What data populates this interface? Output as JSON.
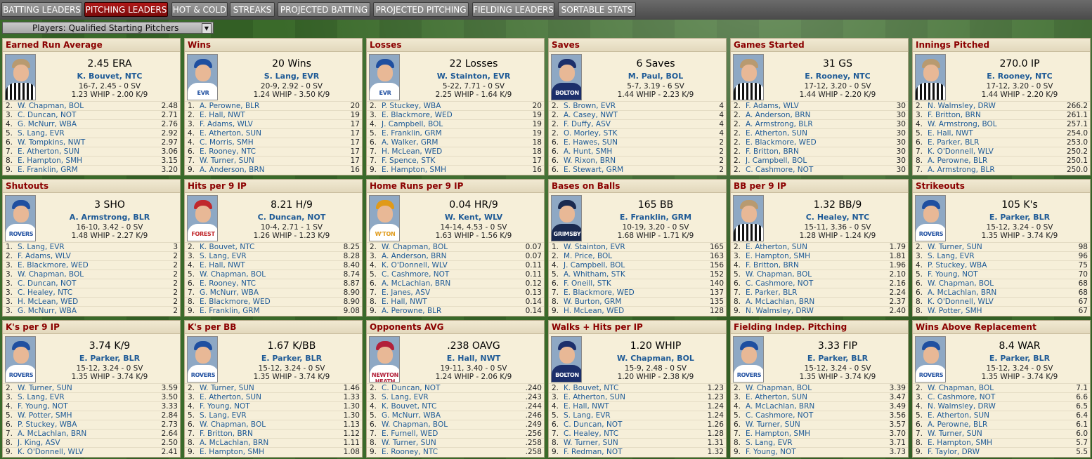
{
  "tabs": [
    {
      "label": "BATTING LEADERS",
      "active": false
    },
    {
      "label": "PITCHING LEADERS",
      "active": true
    },
    {
      "label": "HOT & COLD",
      "active": false
    },
    {
      "label": "STREAKS",
      "active": false
    },
    {
      "label": "PROJECTED BATTING",
      "active": false
    },
    {
      "label": "PROJECTED PITCHING",
      "active": false
    },
    {
      "label": "FIELDING LEADERS",
      "active": false
    },
    {
      "label": "SORTABLE STATS",
      "active": false
    }
  ],
  "filter": {
    "value": "Players: Qualified Starting Pitchers"
  },
  "colors": {
    "active_tab": "#9e1010",
    "title": "#8b0000",
    "link": "#1e5a96",
    "panel_bg": "#f6efd9"
  },
  "panels": [
    {
      "title": "Earned Run Average",
      "leader_value": "2.45 ERA",
      "leader_name": "K. Bouvet, NTC",
      "line1": "16-7, 2.45 - 0 SV",
      "line2": "1.23 WHIP - 2.00 K/9",
      "face_team": "NTC",
      "rows": [
        [
          "2.",
          "W. Chapman, BOL",
          "2.48"
        ],
        [
          "3.",
          "C. Duncan, NOT",
          "2.71"
        ],
        [
          "4.",
          "G. McNurr, WBA",
          "2.76"
        ],
        [
          "5.",
          "S. Lang, EVR",
          "2.92"
        ],
        [
          "6.",
          "W. Tompkins, NWT",
          "2.97"
        ],
        [
          "7.",
          "E. Atherton, SUN",
          "3.06"
        ],
        [
          "8.",
          "E. Hampton, SMH",
          "3.15"
        ],
        [
          "9.",
          "E. Franklin, GRM",
          "3.20"
        ]
      ]
    },
    {
      "title": "Wins",
      "leader_value": "20 Wins",
      "leader_name": "S. Lang, EVR",
      "line1": "20-9, 2.92 - 0 SV",
      "line2": "1.24 WHIP - 3.50 K/9",
      "face_team": "EVR",
      "rows": [
        [
          "1.",
          "A. Perowne, BLR",
          "20"
        ],
        [
          "2.",
          "E. Hall, NWT",
          "19"
        ],
        [
          "3.",
          "F. Adams, WLV",
          "17"
        ],
        [
          "4.",
          "E. Atherton, SUN",
          "17"
        ],
        [
          "4.",
          "C. Morris, SMH",
          "17"
        ],
        [
          "6.",
          "E. Rooney, NTC",
          "17"
        ],
        [
          "7.",
          "W. Turner, SUN",
          "17"
        ],
        [
          "9.",
          "A. Anderson, BRN",
          "16"
        ]
      ]
    },
    {
      "title": "Losses",
      "leader_value": "22 Losses",
      "leader_name": "W. Stainton, EVR",
      "line1": "5-22, 7.71 - 0 SV",
      "line2": "2.25 WHIP - 1.64 K/9",
      "face_team": "EVR",
      "rows": [
        [
          "2.",
          "P. Stuckey, WBA",
          "20"
        ],
        [
          "3.",
          "E. Blackmore, WED",
          "19"
        ],
        [
          "4.",
          "J. Campbell, BOL",
          "19"
        ],
        [
          "5.",
          "E. Franklin, GRM",
          "19"
        ],
        [
          "6.",
          "A. Walker, GRM",
          "18"
        ],
        [
          "7.",
          "H. McLean, WED",
          "18"
        ],
        [
          "7.",
          "F. Spence, STK",
          "17"
        ],
        [
          "9.",
          "E. Hampton, SMH",
          "16"
        ]
      ]
    },
    {
      "title": "Saves",
      "leader_value": "6 Saves",
      "leader_name": "M. Paul, BOL",
      "line1": "5-7, 3.19 - 6 SV",
      "line2": "1.44 WHIP - 2.23 K/9",
      "face_team": "BOLTON",
      "rows": [
        [
          "2.",
          "S. Brown, EVR",
          "4"
        ],
        [
          "2.",
          "A. Casey, NWT",
          "4"
        ],
        [
          "2.",
          "F. Duffy, ASV",
          "4"
        ],
        [
          "2.",
          "O. Morley, STK",
          "4"
        ],
        [
          "6.",
          "E. Hawes, SUN",
          "2"
        ],
        [
          "6.",
          "A. Hunt, SMH",
          "2"
        ],
        [
          "6.",
          "W. Rixon, BRN",
          "2"
        ],
        [
          "6.",
          "E. Stewart, GRM",
          "2"
        ]
      ]
    },
    {
      "title": "Games Started",
      "leader_value": "31 GS",
      "leader_name": "E. Rooney, NTC",
      "line1": "17-12, 3.20 - 0 SV",
      "line2": "1.44 WHIP - 2.20 K/9",
      "face_team": "NTC",
      "rows": [
        [
          "2.",
          "F. Adams, WLV",
          "30"
        ],
        [
          "2.",
          "A. Anderson, BRN",
          "30"
        ],
        [
          "2.",
          "A. Armstrong, BLR",
          "30"
        ],
        [
          "2.",
          "E. Atherton, SUN",
          "30"
        ],
        [
          "2.",
          "E. Blackmore, WED",
          "30"
        ],
        [
          "2.",
          "F. Britton, BRN",
          "30"
        ],
        [
          "2.",
          "J. Campbell, BOL",
          "30"
        ],
        [
          "2.",
          "C. Cashmore, NOT",
          "30"
        ]
      ]
    },
    {
      "title": "Innings Pitched",
      "leader_value": "270.0 IP",
      "leader_name": "E. Rooney, NTC",
      "line1": "17-12, 3.20 - 0 SV",
      "line2": "1.44 WHIP - 2.20 K/9",
      "face_team": "NTC",
      "rows": [
        [
          "2.",
          "N. Walmsley, DRW",
          "266.2"
        ],
        [
          "3.",
          "F. Britton, BRN",
          "261.1"
        ],
        [
          "4.",
          "W. Armstrong, BOL",
          "257.1"
        ],
        [
          "5.",
          "E. Hall, NWT",
          "254.0"
        ],
        [
          "6.",
          "E. Parker, BLR",
          "253.0"
        ],
        [
          "7.",
          "K. O'Donnell, WLV",
          "250.2"
        ],
        [
          "8.",
          "A. Perowne, BLR",
          "250.1"
        ],
        [
          "7.",
          "A. Armstrong, BLR",
          "250.0"
        ]
      ]
    },
    {
      "title": "Shutouts",
      "leader_value": "3 SHO",
      "leader_name": "A. Armstrong, BLR",
      "line1": "16-10, 3.42 - 0 SV",
      "line2": "1.48 WHIP - 2.27 K/9",
      "face_team": "ROVERS",
      "rows": [
        [
          "1.",
          "S. Lang, EVR",
          "3"
        ],
        [
          "2.",
          "F. Adams, WLV",
          "2"
        ],
        [
          "3.",
          "E. Blackmore, WED",
          "2"
        ],
        [
          "3.",
          "W. Chapman, BOL",
          "2"
        ],
        [
          "3.",
          "C. Duncan, NOT",
          "2"
        ],
        [
          "3.",
          "C. Healey, NTC",
          "2"
        ],
        [
          "3.",
          "H. McLean, WED",
          "2"
        ],
        [
          "3.",
          "G. McNurr, WBA",
          "2"
        ]
      ]
    },
    {
      "title": "Hits per 9 IP",
      "leader_value": "8.21 H/9",
      "leader_name": "C. Duncan, NOT",
      "line1": "10-4, 2.71 - 1 SV",
      "line2": "1.26 WHIP - 1.23 K/9",
      "face_team": "FOREST",
      "rows": [
        [
          "2.",
          "K. Bouvet, NTC",
          "8.25"
        ],
        [
          "3.",
          "S. Lang, EVR",
          "8.28"
        ],
        [
          "4.",
          "E. Hall, NWT",
          "8.40"
        ],
        [
          "5.",
          "W. Chapman, BOL",
          "8.74"
        ],
        [
          "6.",
          "E. Rooney, NTC",
          "8.87"
        ],
        [
          "7.",
          "G. McNurr, WBA",
          "8.90"
        ],
        [
          "8.",
          "E. Blackmore, WED",
          "8.90"
        ],
        [
          "9.",
          "E. Franklin, GRM",
          "9.08"
        ]
      ]
    },
    {
      "title": "Home Runs per 9 IP",
      "leader_value": "0.04 HR/9",
      "leader_name": "W. Kent, WLV",
      "line1": "14-14, 4.53 - 0 SV",
      "line2": "1.63 WHIP - 1.56 K/9",
      "face_team": "W'TON",
      "rows": [
        [
          "2.",
          "W. Chapman, BOL",
          "0.07"
        ],
        [
          "3.",
          "A. Anderson, BRN",
          "0.07"
        ],
        [
          "4.",
          "K. O'Donnell, WLV",
          "0.11"
        ],
        [
          "5.",
          "C. Cashmore, NOT",
          "0.11"
        ],
        [
          "6.",
          "A. McLachlan, BRN",
          "0.12"
        ],
        [
          "7.",
          "E. Janes, ASV",
          "0.13"
        ],
        [
          "8.",
          "E. Hall, NWT",
          "0.14"
        ],
        [
          "9.",
          "A. Perowne, BLR",
          "0.14"
        ]
      ]
    },
    {
      "title": "Bases on Balls",
      "leader_value": "165 BB",
      "leader_name": "E. Franklin, GRM",
      "line1": "10-19, 3.20 - 0 SV",
      "line2": "1.68 WHIP - 1.71 K/9",
      "face_team": "GRIMSBY",
      "rows": [
        [
          "1.",
          "W. Stainton, EVR",
          "165"
        ],
        [
          "2.",
          "M. Price, BOL",
          "163"
        ],
        [
          "4.",
          "J. Campbell, BOL",
          "156"
        ],
        [
          "5.",
          "A. Whitham, STK",
          "152"
        ],
        [
          "6.",
          "F. Oneill, STK",
          "140"
        ],
        [
          "7.",
          "E. Blackmore, WED",
          "137"
        ],
        [
          "8.",
          "W. Burton, GRM",
          "135"
        ],
        [
          "9.",
          "H. McLean, WED",
          "128"
        ]
      ]
    },
    {
      "title": "BB per 9 IP",
      "leader_value": "1.32 BB/9",
      "leader_name": "C. Healey, NTC",
      "line1": "15-11, 3.36 - 0 SV",
      "line2": "1.28 WHIP - 1.24 K/9",
      "face_team": "NTC",
      "rows": [
        [
          "2.",
          "E. Atherton, SUN",
          "1.79"
        ],
        [
          "3.",
          "E. Hampton, SMH",
          "1.81"
        ],
        [
          "4.",
          "F. Britton, BRN",
          "1.96"
        ],
        [
          "5.",
          "W. Chapman, BOL",
          "2.10"
        ],
        [
          "6.",
          "C. Cashmore, NOT",
          "2.16"
        ],
        [
          "7.",
          "E. Parker, BLR",
          "2.24"
        ],
        [
          "8.",
          "A. McLachlan, BRN",
          "2.37"
        ],
        [
          "9.",
          "N. Walmsley, DRW",
          "2.40"
        ]
      ]
    },
    {
      "title": "Strikeouts",
      "leader_value": "105 K's",
      "leader_name": "E. Parker, BLR",
      "line1": "15-12, 3.24 - 0 SV",
      "line2": "1.35 WHIP - 3.74 K/9",
      "face_team": "ROVERS",
      "rows": [
        [
          "2.",
          "W. Turner, SUN",
          "98"
        ],
        [
          "3.",
          "S. Lang, EVR",
          "96"
        ],
        [
          "4.",
          "P. Stuckey, WBA",
          "75"
        ],
        [
          "5.",
          "F. Young, NOT",
          "70"
        ],
        [
          "6.",
          "W. Chapman, BOL",
          "68"
        ],
        [
          "6.",
          "A. McLachlan, BRN",
          "68"
        ],
        [
          "8.",
          "K. O'Donnell, WLV",
          "67"
        ],
        [
          "8.",
          "W. Potter, SMH",
          "67"
        ]
      ]
    },
    {
      "title": "K's per 9 IP",
      "leader_value": "3.74 K/9",
      "leader_name": "E. Parker, BLR",
      "line1": "15-12, 3.24 - 0 SV",
      "line2": "1.35 WHIP - 3.74 K/9",
      "face_team": "ROVERS",
      "rows": [
        [
          "2.",
          "W. Turner, SUN",
          "3.59"
        ],
        [
          "3.",
          "S. Lang, EVR",
          "3.50"
        ],
        [
          "4.",
          "F. Young, NOT",
          "3.33"
        ],
        [
          "5.",
          "W. Potter, SMH",
          "2.84"
        ],
        [
          "6.",
          "P. Stuckey, WBA",
          "2.73"
        ],
        [
          "7.",
          "A. McLachlan, BRN",
          "2.64"
        ],
        [
          "8.",
          "J. King, ASV",
          "2.50"
        ],
        [
          "9.",
          "K. O'Donnell, WLV",
          "2.41"
        ]
      ]
    },
    {
      "title": "K's per BB",
      "leader_value": "1.67 K/BB",
      "leader_name": "E. Parker, BLR",
      "line1": "15-12, 3.24 - 0 SV",
      "line2": "1.35 WHIP - 3.74 K/9",
      "face_team": "ROVERS",
      "rows": [
        [
          "2.",
          "W. Turner, SUN",
          "1.46"
        ],
        [
          "3.",
          "E. Atherton, SUN",
          "1.33"
        ],
        [
          "4.",
          "F. Young, NOT",
          "1.30"
        ],
        [
          "5.",
          "S. Lang, EVR",
          "1.30"
        ],
        [
          "6.",
          "W. Chapman, BOL",
          "1.13"
        ],
        [
          "7.",
          "F. Britton, BRN",
          "1.12"
        ],
        [
          "8.",
          "A. McLachlan, BRN",
          "1.11"
        ],
        [
          "9.",
          "E. Hampton, SMH",
          "1.08"
        ]
      ]
    },
    {
      "title": "Opponents AVG",
      "leader_value": ".238 OAVG",
      "leader_name": "E. Hall, NWT",
      "line1": "19-11, 3.40 - 0 SV",
      "line2": "1.24 WHIP - 2.06 K/9",
      "face_team": "NEWTON HEATH",
      "rows": [
        [
          "2.",
          "C. Duncan, NOT",
          ".240"
        ],
        [
          "3.",
          "S. Lang, EVR",
          ".243"
        ],
        [
          "4.",
          "K. Bouvet, NTC",
          ".244"
        ],
        [
          "5.",
          "G. McNurr, WBA",
          ".246"
        ],
        [
          "6.",
          "W. Chapman, BOL",
          ".249"
        ],
        [
          "7.",
          "E. Furnell, WED",
          ".256"
        ],
        [
          "8.",
          "W. Turner, SUN",
          ".258"
        ],
        [
          "9.",
          "E. Rooney, NTC",
          ".258"
        ]
      ]
    },
    {
      "title": "Walks + Hits per IP",
      "leader_value": "1.20 WHIP",
      "leader_name": "W. Chapman, BOL",
      "line1": "15-9, 2.48 - 0 SV",
      "line2": "1.20 WHIP - 2.38 K/9",
      "face_team": "BOLTON",
      "rows": [
        [
          "2.",
          "K. Bouvet, NTC",
          "1.23"
        ],
        [
          "3.",
          "E. Atherton, SUN",
          "1.23"
        ],
        [
          "4.",
          "E. Hall, NWT",
          "1.24"
        ],
        [
          "5.",
          "S. Lang, EVR",
          "1.24"
        ],
        [
          "6.",
          "C. Duncan, NOT",
          "1.26"
        ],
        [
          "7.",
          "C. Healey, NTC",
          "1.28"
        ],
        [
          "8.",
          "W. Turner, SUN",
          "1.31"
        ],
        [
          "9.",
          "F. Redman, NOT",
          "1.32"
        ]
      ]
    },
    {
      "title": "Fielding Indep. Pitching",
      "leader_value": "3.33 FIP",
      "leader_name": "E. Parker, BLR",
      "line1": "15-12, 3.24 - 0 SV",
      "line2": "1.35 WHIP - 3.74 K/9",
      "face_team": "ROVERS",
      "rows": [
        [
          "2.",
          "W. Chapman, BOL",
          "3.39"
        ],
        [
          "3.",
          "E. Atherton, SUN",
          "3.47"
        ],
        [
          "4.",
          "A. McLachlan, BRN",
          "3.49"
        ],
        [
          "5.",
          "C. Cashmore, NOT",
          "3.56"
        ],
        [
          "6.",
          "W. Turner, SUN",
          "3.57"
        ],
        [
          "7.",
          "E. Hampton, SMH",
          "3.70"
        ],
        [
          "8.",
          "S. Lang, EVR",
          "3.71"
        ],
        [
          "9.",
          "F. Young, NOT",
          "3.73"
        ]
      ]
    },
    {
      "title": "Wins Above Replacement",
      "leader_value": "8.4 WAR",
      "leader_name": "E. Parker, BLR",
      "line1": "15-12, 3.24 - 0 SV",
      "line2": "1.35 WHIP - 3.74 K/9",
      "face_team": "ROVERS",
      "rows": [
        [
          "2.",
          "W. Chapman, BOL",
          "7.1"
        ],
        [
          "3.",
          "C. Cashmore, NOT",
          "6.6"
        ],
        [
          "4.",
          "N. Walmsley, DRW",
          "6.5"
        ],
        [
          "5.",
          "E. Atherton, SUN",
          "6.4"
        ],
        [
          "6.",
          "A. Perowne, BLR",
          "6.1"
        ],
        [
          "7.",
          "W. Turner, SUN",
          "6.0"
        ],
        [
          "8.",
          "E. Hampton, SMH",
          "5.7"
        ],
        [
          "9.",
          "F. Taylor, DRW",
          "5.5"
        ]
      ]
    }
  ]
}
